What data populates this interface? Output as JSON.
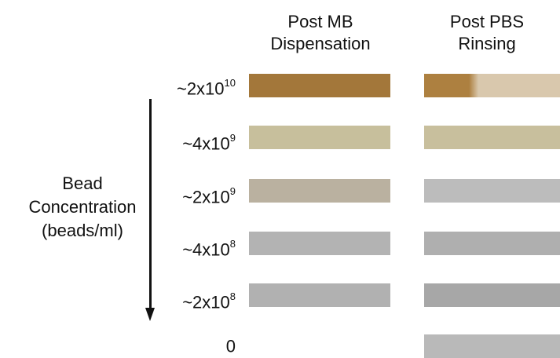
{
  "headers": {
    "mb_line1": "Post MB",
    "mb_line2": "Dispensation",
    "pbs_line1": "Post PBS",
    "pbs_line2": "Rinsing"
  },
  "axis": {
    "line1": "Bead",
    "line2": "Concentration",
    "line3": "(beads/ml)"
  },
  "rows": [
    {
      "base": "~2x10",
      "exp": "10",
      "mb_color": "#a3773a",
      "pbs_color": "#ad8040",
      "pbs_color_right": "#d9c8ad"
    },
    {
      "base": "~4x10",
      "exp": "9",
      "mb_color": "#c7bf9c",
      "pbs_color": "#c8bf9d",
      "pbs_color_right": "#c8bf9d"
    },
    {
      "base": "~2x10",
      "exp": "9",
      "mb_color": "#bab1a0",
      "pbs_color": "#bcbcbc",
      "pbs_color_right": "#bcbcbc"
    },
    {
      "base": "~4x10",
      "exp": "8",
      "mb_color": "#b3b3b3",
      "pbs_color": "#afafaf",
      "pbs_color_right": "#afafaf"
    },
    {
      "base": "~2x10",
      "exp": "8",
      "mb_color": "#b1b1b1",
      "pbs_color": "#a7a7a7",
      "pbs_color_right": "#a7a7a7"
    },
    {
      "base": "0",
      "exp": "",
      "mb_color": "#ffffff",
      "pbs_color": "#b9b9b9",
      "pbs_color_right": "#b9b9b9"
    }
  ]
}
